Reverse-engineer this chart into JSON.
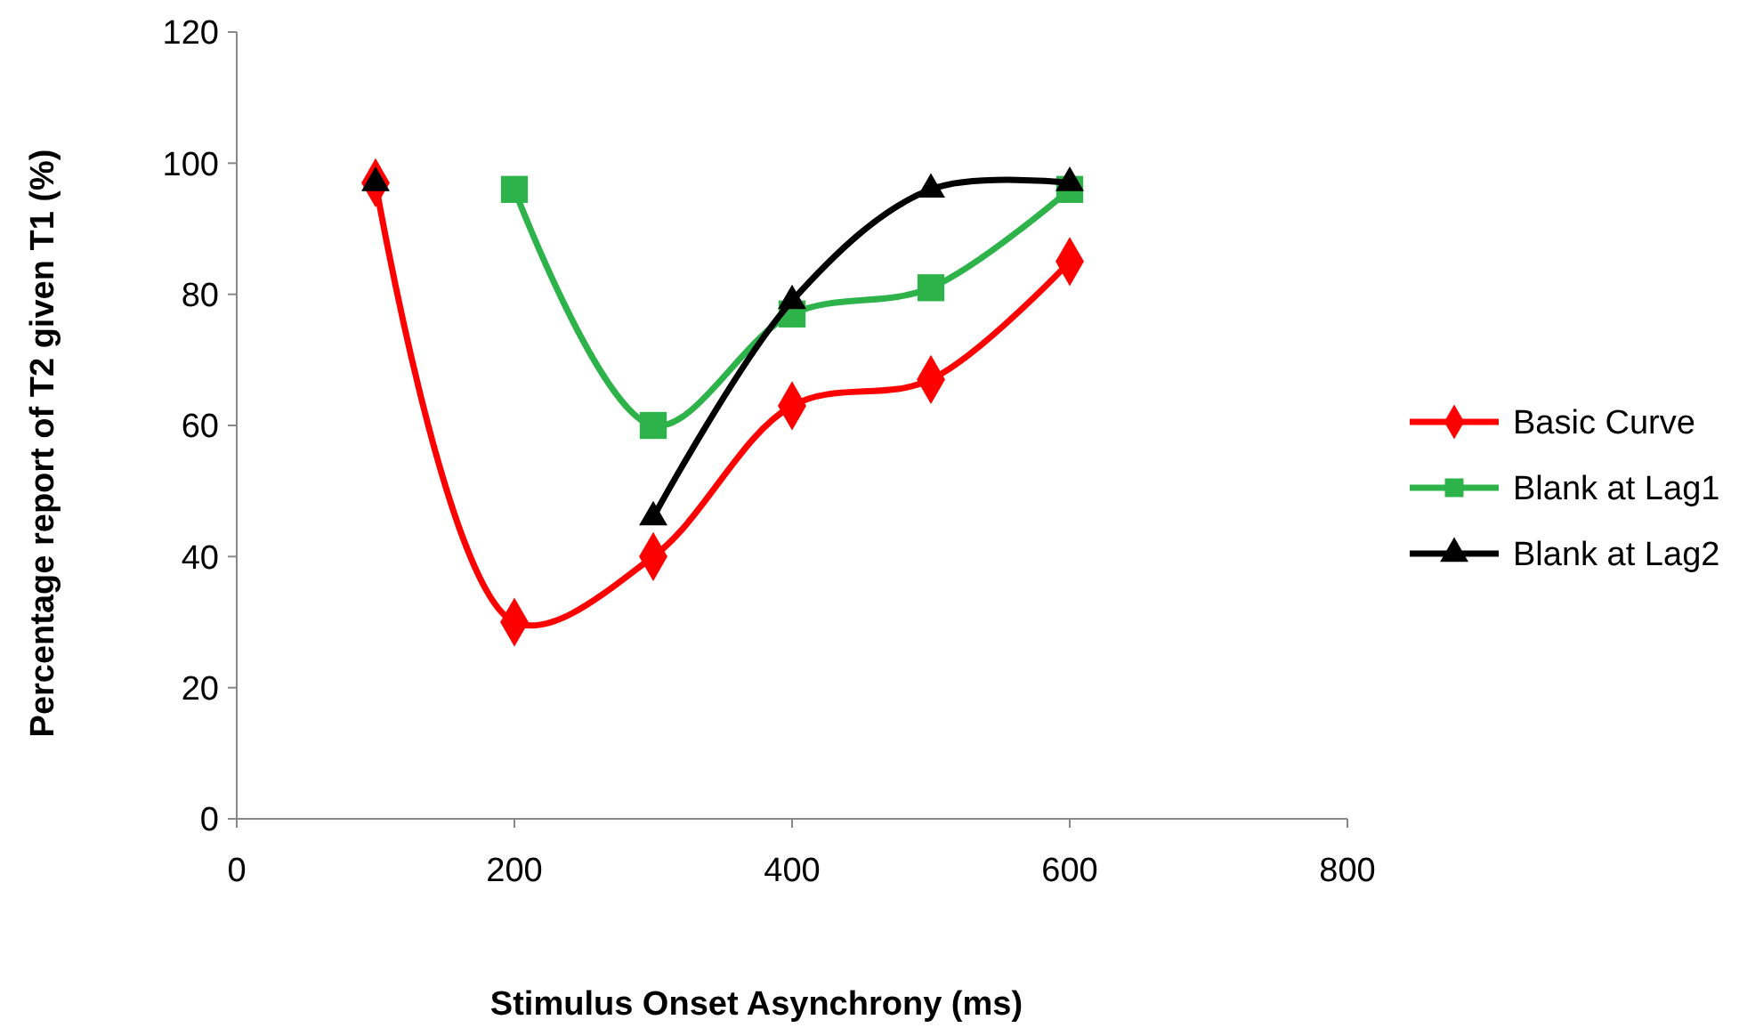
{
  "chart_data": {
    "type": "line",
    "xlabel": "Stimulus Onset Asynchrony (ms)",
    "ylabel": "Percentage report of T2 given T1 (%)",
    "xlim": [
      0,
      800
    ],
    "xticks": [
      0,
      200,
      400,
      600,
      800
    ],
    "ylim": [
      0,
      120
    ],
    "yticks": [
      0,
      20,
      40,
      60,
      80,
      100,
      120
    ],
    "grid": false,
    "legend": "right",
    "series": [
      {
        "name": "Basic Curve",
        "color": "#ff0000",
        "marker": "diamond",
        "x": [
          100,
          200,
          300,
          400,
          500,
          600
        ],
        "values": [
          97,
          30,
          40,
          63,
          67,
          85
        ]
      },
      {
        "name": "Blank at Lag1",
        "color": "#2db34a",
        "marker": "square",
        "x": [
          200,
          300,
          400,
          500,
          600
        ],
        "values": [
          96,
          60,
          77,
          81,
          96
        ]
      },
      {
        "name": "Blank at Lag2",
        "color": "#000000",
        "marker": "triangle",
        "x": [
          100,
          200,
          300,
          400,
          500,
          600
        ],
        "values": [
          97,
          null,
          46,
          79,
          96,
          97
        ]
      }
    ]
  }
}
